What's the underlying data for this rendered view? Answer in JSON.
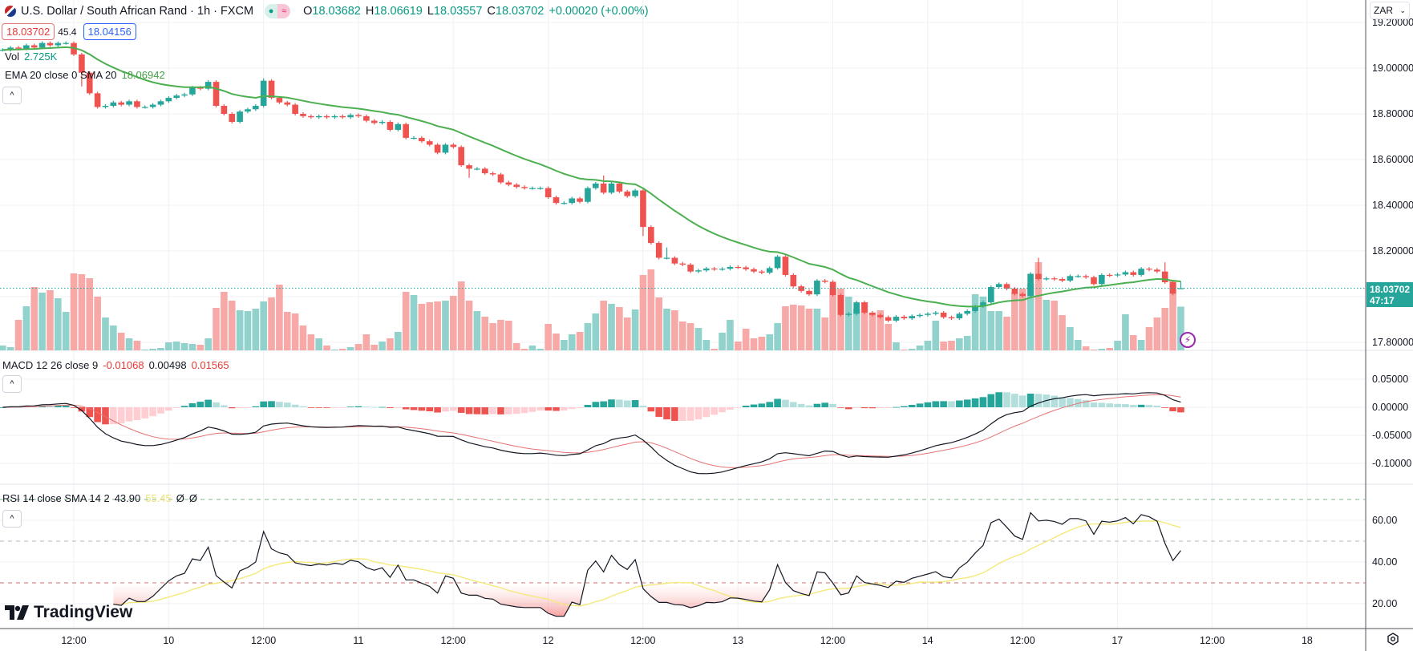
{
  "header": {
    "symbol_title": "U.S. Dollar / South African Rand · 1h · FXCM",
    "ohlc": {
      "o_label": "O",
      "o": "18.03682",
      "h_label": "H",
      "h": "18.06619",
      "l_label": "L",
      "l": "18.03557",
      "c_label": "C",
      "c": "18.03702",
      "change": "+0.00020 (+0.00%)"
    },
    "sell_price": "18.03702",
    "spread": "45.4",
    "buy_price": "18.04156",
    "currency_selector": "ZAR",
    "toggle_icon": "≈"
  },
  "legends": {
    "volume": {
      "label": "Vol",
      "value": "2.725K"
    },
    "ema": {
      "label": "EMA 20 close 0 SMA 20",
      "value": "18.06942"
    },
    "macd": {
      "label": "MACD 12 26 close 9",
      "histogram": "-0.01068",
      "macd": "0.00498",
      "signal": "0.01565"
    },
    "rsi": {
      "label": "RSI 14 close SMA 14 2",
      "rsi": "43.90",
      "sma": "55.45",
      "extra1": "Ø",
      "extra2": "Ø"
    }
  },
  "last_price_label": {
    "price": "18.03702",
    "countdown": "47:17"
  },
  "logo_text": "TradingView",
  "colors": {
    "up": "#26a69a",
    "down": "#ef5350",
    "up_volume": "#92d2cc",
    "down_volume": "#f7a9a7",
    "ema": "#4caf50",
    "macd": "#131722",
    "signal": "#e57373",
    "rsi": "#131722",
    "rsi_sma": "#f5e97a"
  },
  "chart_data": {
    "type": "candlestick",
    "interval": "1h",
    "x_tick_labels": [
      "12:00",
      "10",
      "12:00",
      "11",
      "12:00",
      "12",
      "12:00",
      "13",
      "12:00",
      "14",
      "12:00",
      "17",
      "12:00",
      "18"
    ],
    "price_axis": {
      "ticks": [
        "19.20000",
        "19.00000",
        "18.80000",
        "18.60000",
        "18.40000",
        "18.20000",
        "17.80000"
      ],
      "tick_values": [
        19.2,
        19.0,
        18.8,
        18.6,
        18.4,
        18.2,
        17.8
      ],
      "range": [
        17.77,
        19.28
      ]
    },
    "macd_axis": {
      "ticks": [
        "0.05000",
        "0.00000",
        "-0.05000",
        "-0.10000"
      ],
      "tick_values": [
        0.05,
        0,
        -0.05,
        -0.1
      ]
    },
    "rsi_axis": {
      "ticks": [
        "60.00",
        "40.00",
        "20.00"
      ],
      "tick_values": [
        60,
        40,
        20
      ],
      "bands": [
        70,
        50,
        30
      ]
    },
    "close": [
      19.08,
      19.09,
      19.085,
      19.1,
      19.09,
      19.11,
      19.1,
      19.11,
      19.11,
      19.06,
      18.98,
      18.89,
      18.83,
      18.835,
      18.85,
      18.84,
      18.855,
      18.83,
      18.83,
      18.84,
      18.855,
      18.87,
      18.88,
      18.885,
      18.915,
      18.91,
      18.94,
      18.835,
      18.8,
      18.765,
      18.81,
      18.82,
      18.835,
      18.945,
      18.87,
      18.85,
      18.84,
      18.8,
      18.79,
      18.785,
      18.79,
      18.785,
      18.79,
      18.785,
      18.795,
      18.79,
      18.77,
      18.76,
      18.765,
      18.73,
      18.755,
      18.695,
      18.695,
      18.68,
      18.665,
      18.63,
      18.665,
      18.655,
      18.575,
      18.56,
      18.56,
      18.54,
      18.535,
      18.5,
      18.49,
      18.48,
      18.475,
      18.475,
      18.475,
      18.435,
      18.41,
      18.41,
      18.43,
      18.415,
      18.475,
      18.495,
      18.455,
      18.495,
      18.46,
      18.44,
      18.465,
      18.305,
      18.235,
      18.17,
      18.17,
      18.145,
      18.14,
      18.11,
      18.115,
      18.123,
      18.12,
      18.122,
      18.13,
      18.128,
      18.12,
      18.11,
      18.105,
      18.125,
      18.175,
      18.095,
      18.045,
      18.025,
      18.01,
      18.07,
      18.065,
      18.007,
      17.92,
      17.925,
      17.975,
      17.93,
      17.92,
      17.91,
      17.895,
      17.912,
      17.905,
      17.915,
      17.92,
      17.925,
      17.93,
      17.91,
      17.905,
      17.925,
      17.937,
      17.957,
      17.975,
      18.042,
      18.055,
      18.035,
      18.012,
      18.003,
      18.1,
      18.077,
      18.08,
      18.077,
      18.07,
      18.09,
      18.09,
      18.085,
      18.055,
      18.095,
      18.093,
      18.097,
      18.107,
      18.095,
      18.122,
      18.118,
      18.11,
      18.063,
      18.013,
      18.03702
    ],
    "notable_wicks": {
      "10": [
        null,
        18.92
      ],
      "33": [
        18.955,
        null
      ],
      "59": [
        null,
        18.52
      ],
      "76": [
        18.53,
        null
      ],
      "81": [
        null,
        18.265
      ],
      "84": [
        18.215,
        null
      ],
      "131": [
        18.17,
        null
      ],
      "147": [
        18.15,
        null
      ],
      "149": [
        18.06619,
        18.03557
      ]
    },
    "last_open": 18.03682,
    "volume_k": [
      0.3,
      0.2,
      1.9,
      2.75,
      3.95,
      3.6,
      3.75,
      3.25,
      2.4,
      4.8,
      4.75,
      4.5,
      3.35,
      2.05,
      1.55,
      1.1,
      0.75,
      0.6,
      0.05,
      0.1,
      0.15,
      0.5,
      0.55,
      0.45,
      0.4,
      0.35,
      0.75,
      2.65,
      3.65,
      3.1,
      2.5,
      2.45,
      2.6,
      3.05,
      3.3,
      4.1,
      2.4,
      2.3,
      1.55,
      1.0,
      0.75,
      0.3,
      0.05,
      0.1,
      0.2,
      0.4,
      1.0,
      0.35,
      0.55,
      0.75,
      1.15,
      3.65,
      3.45,
      2.9,
      3.0,
      3.05,
      3.1,
      3.4,
      4.3,
      3.1,
      2.45,
      2.1,
      1.7,
      1.9,
      1.85,
      0.45,
      0.1,
      0.3,
      0.1,
      1.65,
      1.05,
      0.65,
      1.0,
      1.15,
      1.7,
      2.3,
      3.1,
      2.9,
      2.7,
      2.05,
      2.55,
      4.7,
      5.05,
      3.3,
      2.6,
      2.5,
      1.8,
      1.7,
      1.4,
      0.65,
      0.1,
      1.1,
      1.9,
      0.55,
      1.35,
      0.75,
      0.85,
      1.0,
      1.7,
      2.75,
      2.85,
      2.8,
      2.6,
      2.6,
      2.05,
      3.85,
      3.85,
      3.35,
      2.6,
      3.0,
      2.35,
      2.5,
      1.65,
      0.5,
      0.05,
      0.1,
      0.3,
      0.6,
      1.85,
      0.55,
      0.6,
      0.75,
      0.9,
      3.5,
      3.35,
      2.45,
      2.45,
      2.1,
      3.6,
      3.85,
      4.15,
      5.5,
      3.15,
      3.1,
      2.2,
      1.45,
      0.65,
      0.25,
      0.05,
      0.1,
      0.15,
      0.6,
      2.25,
      0.95,
      0.65,
      1.45,
      2.05,
      2.65,
      4.35,
      2.725
    ],
    "indicators": {
      "ema_period": 20,
      "macd": [
        12,
        26,
        9
      ],
      "rsi_period": 14,
      "rsi_sma": 14
    },
    "grid": true
  }
}
